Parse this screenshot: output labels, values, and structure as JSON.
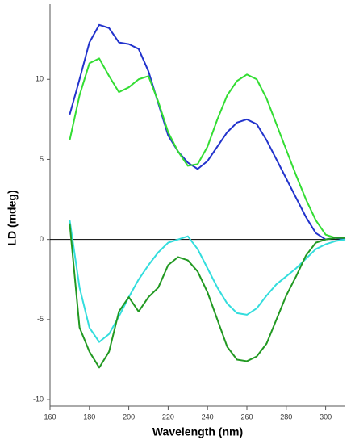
{
  "chart_data": {
    "type": "line",
    "xlabel": "Wavelength (nm)",
    "ylabel": "LD (mdeg)",
    "x": [
      170,
      175,
      180,
      185,
      190,
      195,
      200,
      205,
      210,
      215,
      220,
      225,
      230,
      235,
      240,
      245,
      250,
      255,
      260,
      265,
      270,
      275,
      280,
      285,
      290,
      295,
      300,
      305,
      310
    ],
    "series": [
      {
        "color": "#2233cc",
        "values": [
          7.8,
          10.0,
          12.3,
          13.4,
          13.2,
          12.3,
          12.2,
          11.9,
          10.5,
          8.5,
          6.5,
          5.5,
          4.8,
          4.4,
          4.9,
          5.8,
          6.7,
          7.3,
          7.5,
          7.2,
          6.2,
          5.0,
          3.8,
          2.6,
          1.4,
          0.4,
          0.0,
          0.1,
          0.0
        ]
      },
      {
        "color": "#33dd33",
        "values": [
          6.2,
          9.0,
          11.0,
          11.3,
          10.2,
          9.2,
          9.5,
          10.0,
          10.2,
          8.6,
          6.7,
          5.5,
          4.6,
          4.7,
          5.8,
          7.5,
          9.0,
          9.9,
          10.3,
          10.0,
          8.8,
          7.2,
          5.6,
          4.0,
          2.5,
          1.2,
          0.3,
          0.1,
          0.1
        ]
      },
      {
        "color": "#33dddd",
        "values": [
          1.2,
          -3.0,
          -5.5,
          -6.4,
          -5.9,
          -4.8,
          -3.6,
          -2.5,
          -1.6,
          -0.8,
          -0.2,
          0.0,
          0.2,
          -0.6,
          -1.8,
          -3.0,
          -4.0,
          -4.6,
          -4.7,
          -4.3,
          -3.5,
          -2.8,
          -2.3,
          -1.8,
          -1.2,
          -0.6,
          -0.3,
          -0.1,
          0.0
        ]
      },
      {
        "color": "#229922",
        "values": [
          1.0,
          -5.5,
          -7.0,
          -8.0,
          -7.0,
          -4.5,
          -3.6,
          -4.5,
          -3.6,
          -3.0,
          -1.6,
          -1.1,
          -1.3,
          -2.0,
          -3.3,
          -5.0,
          -6.7,
          -7.5,
          -7.6,
          -7.3,
          -6.5,
          -5.0,
          -3.5,
          -2.3,
          -1.0,
          -0.2,
          0.0,
          0.1,
          0.1
        ]
      }
    ],
    "xlim": [
      160,
      310
    ],
    "xticks": [
      160,
      180,
      200,
      220,
      240,
      260,
      280,
      300
    ],
    "ylim": [
      -10.4,
      14.7
    ],
    "yticks": [
      10,
      5,
      0,
      -5,
      -10
    ],
    "zero_line": true
  }
}
